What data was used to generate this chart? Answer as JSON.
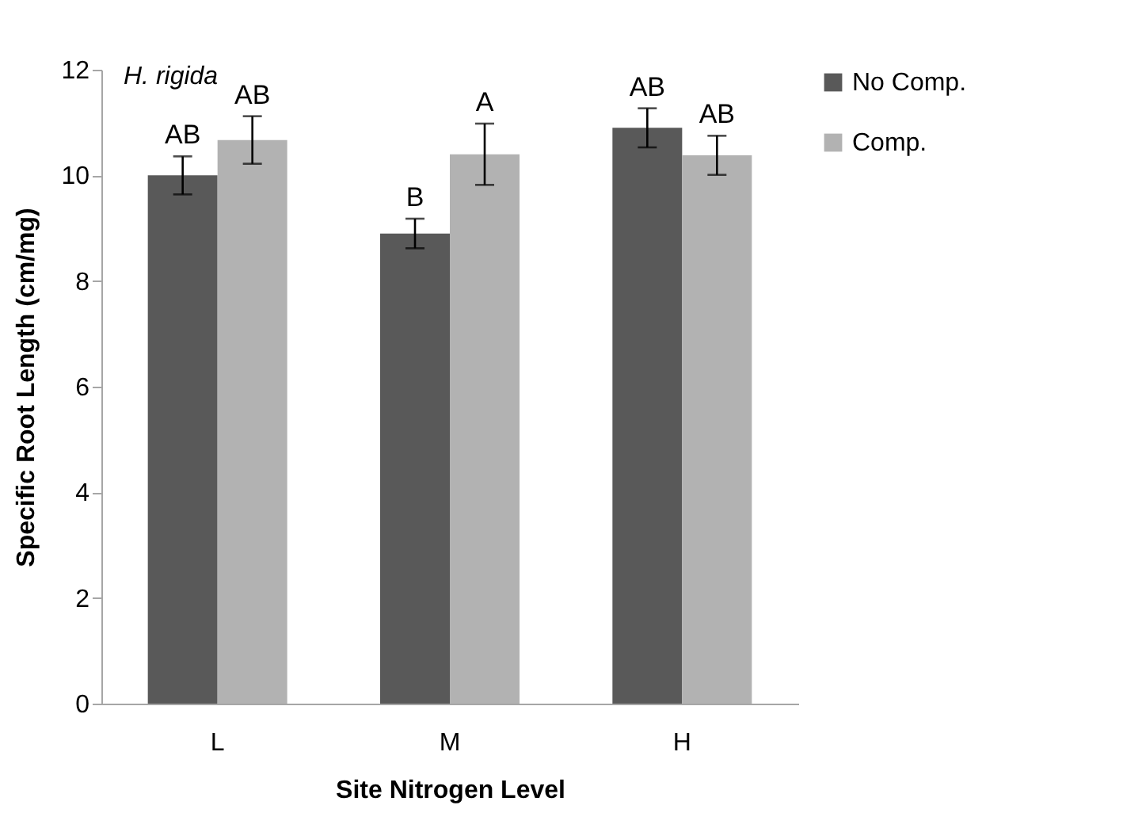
{
  "chart_data": {
    "type": "bar",
    "title": "H. rigida",
    "xlabel": "Site Nitrogen Level",
    "ylabel": "Specific Root Length (cm/mg)",
    "categories": [
      "L",
      "M",
      "H"
    ],
    "series": [
      {
        "name": "No Comp.",
        "color": "#595959",
        "values": [
          10.0,
          8.9,
          10.9
        ],
        "errors": [
          0.36,
          0.28,
          0.37
        ],
        "value_labels": [
          "AB",
          "B",
          "AB"
        ]
      },
      {
        "name": "Comp.",
        "color": "#b2b2b2",
        "values": [
          10.67,
          10.4,
          10.38
        ],
        "errors": [
          0.45,
          0.58,
          0.37
        ],
        "value_labels": [
          "AB",
          "A",
          "AB"
        ]
      }
    ],
    "ylim": [
      0,
      12
    ],
    "yticks": [
      0,
      2,
      4,
      6,
      8,
      10,
      12
    ],
    "grid": false,
    "legend": "right"
  }
}
